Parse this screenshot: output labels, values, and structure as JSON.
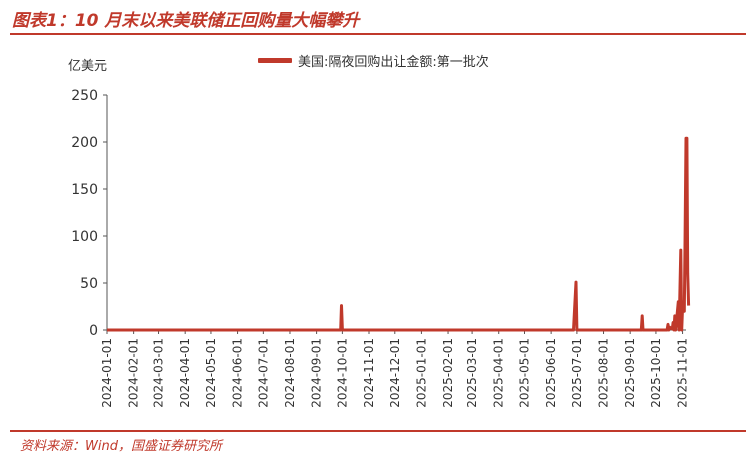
{
  "title": "图表1：10 月末以来美联储正回购量大幅攀升",
  "source": "资料来源：Wind，国盛证券研究所",
  "colors": {
    "accent": "#c0392b",
    "series": "#c0392b"
  },
  "chart_data": {
    "type": "line",
    "title": "",
    "ylabel": "亿美元",
    "xlabel": "",
    "ylim": [
      0,
      250
    ],
    "yticks": [
      0,
      50,
      100,
      150,
      200,
      250
    ],
    "xlim": [
      "2024-01-01",
      "2025-11-05"
    ],
    "xticks": [
      "2024-01-01",
      "2024-02-01",
      "2024-03-01",
      "2024-04-01",
      "2024-05-01",
      "2024-06-01",
      "2024-07-01",
      "2024-08-01",
      "2024-09-01",
      "2024-10-01",
      "2024-11-01",
      "2024-12-01",
      "2025-01-01",
      "2025-02-01",
      "2025-03-01",
      "2025-04-01",
      "2025-05-01",
      "2025-06-01",
      "2025-07-01",
      "2025-08-01",
      "2025-09-01",
      "2025-10-01",
      "2025-11-01"
    ],
    "grid": false,
    "legend_position": "top",
    "series": [
      {
        "name": "美国:隔夜回购出让金额:第一批次",
        "points": [
          [
            "2024-01-01",
            0
          ],
          [
            "2024-09-29",
            0
          ],
          [
            "2024-09-30",
            26
          ],
          [
            "2024-10-01",
            0
          ],
          [
            "2025-06-27",
            0
          ],
          [
            "2025-06-30",
            51
          ],
          [
            "2025-07-01",
            0
          ],
          [
            "2025-09-14",
            0
          ],
          [
            "2025-09-15",
            15
          ],
          [
            "2025-09-16",
            0
          ],
          [
            "2025-10-14",
            0
          ],
          [
            "2025-10-15",
            6
          ],
          [
            "2025-10-16",
            0
          ],
          [
            "2025-10-17",
            3
          ],
          [
            "2025-10-20",
            1
          ],
          [
            "2025-10-21",
            8
          ],
          [
            "2025-10-22",
            0
          ],
          [
            "2025-10-23",
            15
          ],
          [
            "2025-10-24",
            0
          ],
          [
            "2025-10-27",
            30
          ],
          [
            "2025-10-28",
            0
          ],
          [
            "2025-10-30",
            85
          ],
          [
            "2025-10-31",
            0
          ],
          [
            "2025-11-01",
            25
          ],
          [
            "2025-11-02",
            30
          ],
          [
            "2025-11-03",
            20
          ],
          [
            "2025-11-04",
            100
          ],
          [
            "2025-11-05",
            204
          ],
          [
            "2025-11-06",
            204
          ],
          [
            "2025-11-07",
            60
          ],
          [
            "2025-11-08",
            26
          ]
        ]
      }
    ]
  }
}
